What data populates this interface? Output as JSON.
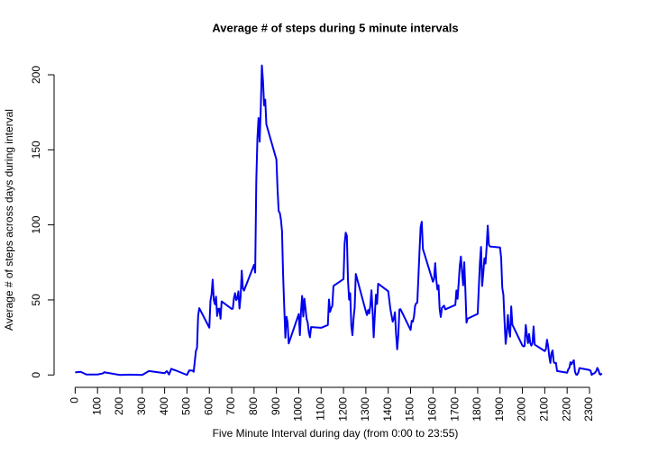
{
  "chart_data": {
    "type": "line",
    "title": "Average # of steps during 5 minute intervals",
    "x_label": "Five Minute Interval during day (from 0:00 to 23:55)",
    "y_label": "Average # of steps across days during interval",
    "color": "#0000ee",
    "x": [
      0,
      25,
      50,
      100,
      125,
      130,
      200,
      245,
      300,
      330,
      400,
      410,
      420,
      430,
      440,
      450,
      500,
      510,
      525,
      530,
      540,
      545,
      550,
      555,
      600,
      605,
      610,
      615,
      620,
      625,
      630,
      635,
      640,
      645,
      650,
      655,
      700,
      705,
      710,
      715,
      720,
      725,
      730,
      735,
      740,
      745,
      750,
      755,
      800,
      805,
      810,
      815,
      820,
      825,
      830,
      835,
      840,
      845,
      850,
      855,
      900,
      905,
      910,
      915,
      920,
      925,
      930,
      935,
      940,
      945,
      950,
      955,
      1000,
      1005,
      1010,
      1015,
      1020,
      1025,
      1030,
      1035,
      1040,
      1045,
      1050,
      1055,
      1100,
      1130,
      1135,
      1140,
      1145,
      1150,
      1155,
      1200,
      1205,
      1210,
      1215,
      1220,
      1225,
      1230,
      1235,
      1240,
      1245,
      1250,
      1255,
      1300,
      1305,
      1310,
      1315,
      1320,
      1325,
      1330,
      1335,
      1340,
      1345,
      1350,
      1355,
      1400,
      1410,
      1420,
      1425,
      1430,
      1435,
      1440,
      1445,
      1450,
      1455,
      1500,
      1505,
      1510,
      1515,
      1520,
      1525,
      1530,
      1535,
      1540,
      1545,
      1550,
      1555,
      1600,
      1605,
      1610,
      1615,
      1620,
      1625,
      1630,
      1635,
      1640,
      1645,
      1650,
      1655,
      1700,
      1705,
      1710,
      1715,
      1720,
      1725,
      1730,
      1735,
      1740,
      1745,
      1750,
      1755,
      1800,
      1805,
      1810,
      1815,
      1820,
      1825,
      1830,
      1835,
      1840,
      1845,
      1850,
      1855,
      1900,
      1905,
      1910,
      1915,
      1920,
      1925,
      1930,
      1935,
      1940,
      1945,
      1950,
      1955,
      2000,
      2005,
      2010,
      2015,
      2020,
      2025,
      2030,
      2035,
      2040,
      2045,
      2050,
      2055,
      2100,
      2105,
      2110,
      2115,
      2120,
      2125,
      2130,
      2135,
      2140,
      2145,
      2150,
      2155,
      2200,
      2205,
      2210,
      2215,
      2220,
      2225,
      2230,
      2235,
      2240,
      2245,
      2250,
      2255,
      2300,
      2305,
      2310,
      2315,
      2320,
      2325,
      2330,
      2335,
      2340,
      2345,
      2350,
      2355
    ],
    "values": [
      1.7,
      2.1,
      0.3,
      0.3,
      1.1,
      1.8,
      0,
      0.2,
      0,
      2.6,
      1.2,
      2.6,
      0.3,
      4.1,
      3.5,
      3,
      0,
      3,
      2.96,
      2.1,
      16,
      18,
      39.5,
      44.5,
      31.5,
      49.3,
      53.8,
      63.5,
      50,
      47.1,
      52.2,
      39.3,
      44,
      44.2,
      37.4,
      49,
      44,
      44.2,
      51,
      54.5,
      49.9,
      50.9,
      55.7,
      44.3,
      52.3,
      69.5,
      57.8,
      56.2,
      73.4,
      68.2,
      129.4,
      157.5,
      171.2,
      155.4,
      177.3,
      206.2,
      195.9,
      179.6,
      183.4,
      167,
      143.5,
      124,
      109.1,
      108.1,
      103.7,
      96,
      66.2,
      45.2,
      24.8,
      38.8,
      34.98,
      21,
      40.6,
      26.5,
      42.4,
      52.7,
      38.9,
      50.8,
      44.3,
      37.4,
      34.7,
      28.3,
      25.1,
      31.9,
      31.4,
      33.3,
      50.3,
      42,
      44.6,
      46,
      59.3,
      63.9,
      87.6,
      94.8,
      92.8,
      63.4,
      50.2,
      54.5,
      32.4,
      26.5,
      37.7,
      45.1,
      67.3,
      42.3,
      39.9,
      43.3,
      40.98,
      46.2,
      56.4,
      42.8,
      25.1,
      39.97,
      53.5,
      47.3,
      60.8,
      55.8,
      43.6,
      35.5,
      37.5,
      41.8,
      27.5,
      17.1,
      26.2,
      43.6,
      43.8,
      30,
      36.1,
      35.5,
      38.8,
      45.96,
      47.8,
      48.1,
      65.3,
      82.9,
      98.7,
      102.1,
      83.96,
      62.1,
      64.1,
      74.5,
      63.2,
      56.9,
      59.8,
      43.9,
      38.6,
      44.7,
      45.5,
      46.2,
      43.7,
      46.6,
      56.3,
      50.7,
      61.2,
      72.7,
      78.9,
      68.9,
      59.7,
      75.1,
      56.5,
      34.8,
      37.5,
      40.7,
      58,
      74.7,
      85.3,
      59.3,
      67.8,
      77.7,
      74.2,
      85.3,
      99.5,
      86.6,
      85.6,
      84.9,
      77.8,
      58,
      53.4,
      36.3,
      20.7,
      27.4,
      40,
      30.2,
      25.5,
      45.7,
      33.5,
      19.6,
      19,
      19.3,
      33.3,
      26.8,
      21.2,
      27.3,
      21.3,
      19.5,
      21.3,
      32.3,
      20.2,
      15.9,
      17.2,
      23.5,
      19.2,
      12.5,
      8,
      14.7,
      16.3,
      8.7,
      7.8,
      8.1,
      2.6,
      1.5,
      3.7,
      4.8,
      8.5,
      7.1,
      8.7,
      9.8,
      2.2,
      0.3,
      0.1,
      1.6,
      4.6,
      3.3,
      2.8,
      0,
      0.8,
      0.96,
      1.6,
      2.6,
      4.7,
      3.3,
      0.6,
      0.2,
      1.1
    ],
    "xlim": [
      -94.2,
      2449.2
    ],
    "ylim": [
      -8.25,
      214.4
    ],
    "xticks": [
      0,
      100,
      200,
      300,
      400,
      500,
      600,
      700,
      800,
      900,
      1000,
      1100,
      1200,
      1300,
      1400,
      1500,
      1600,
      1700,
      1800,
      1900,
      2000,
      2100,
      2200,
      2300
    ],
    "yticks": [
      0,
      50,
      100,
      150,
      200
    ]
  }
}
